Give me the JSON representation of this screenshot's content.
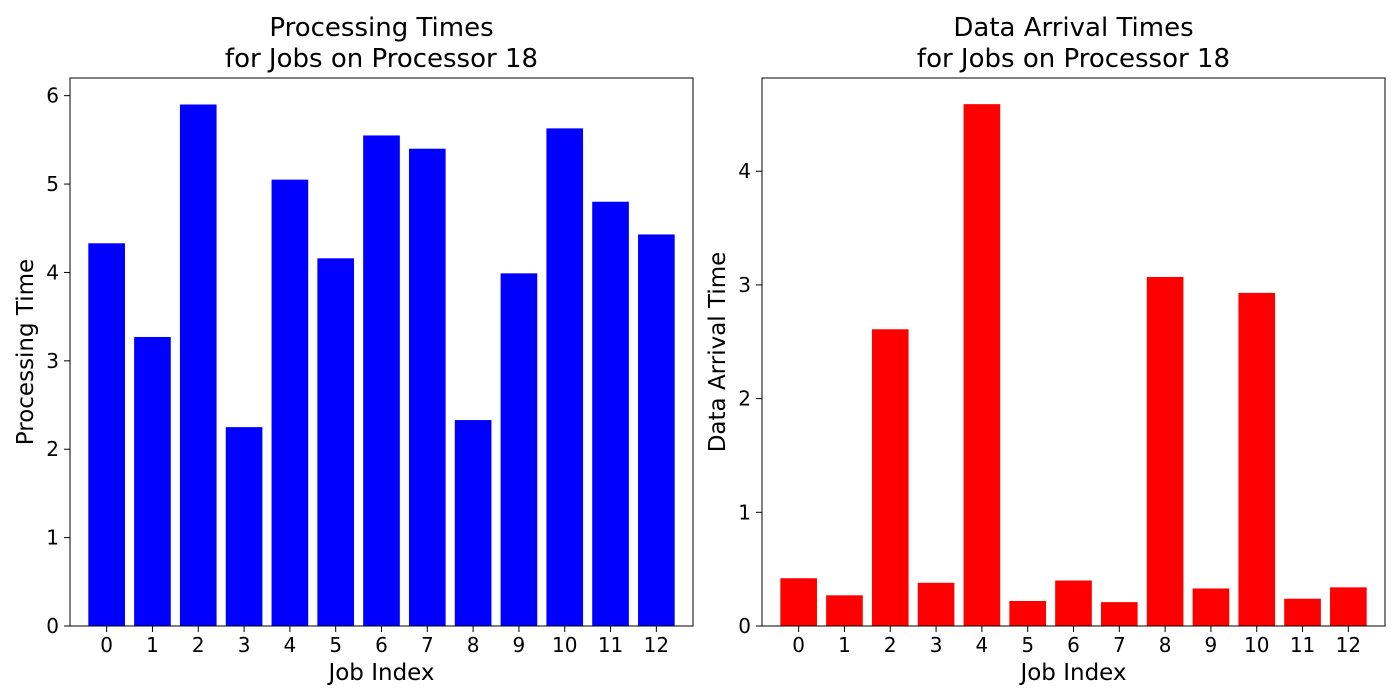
{
  "chart_data": [
    {
      "type": "bar",
      "title_lines": [
        "Processing Times",
        "for Jobs on Processor 18"
      ],
      "xlabel": "Job Index",
      "ylabel": "Processing Time",
      "categories": [
        "0",
        "1",
        "2",
        "3",
        "4",
        "5",
        "6",
        "7",
        "8",
        "9",
        "10",
        "11",
        "12"
      ],
      "values": [
        4.33,
        3.27,
        5.9,
        2.25,
        5.05,
        4.16,
        5.55,
        5.4,
        2.33,
        3.99,
        5.63,
        4.8,
        4.43
      ],
      "ylim": [
        0,
        6.2
      ],
      "yticks": [
        0,
        1,
        2,
        3,
        4,
        5,
        6
      ],
      "color": "#0000ff",
      "grid": false
    },
    {
      "type": "bar",
      "title_lines": [
        "Data Arrival Times",
        "for Jobs on Processor 18"
      ],
      "xlabel": "Job Index",
      "ylabel": "Data Arrival Time",
      "categories": [
        "0",
        "1",
        "2",
        "3",
        "4",
        "5",
        "6",
        "7",
        "8",
        "9",
        "10",
        "11",
        "12"
      ],
      "values": [
        0.42,
        0.27,
        2.61,
        0.38,
        4.59,
        0.22,
        0.4,
        0.21,
        3.07,
        0.33,
        2.93,
        0.24,
        0.34
      ],
      "ylim": [
        0,
        4.82
      ],
      "yticks": [
        0,
        1,
        2,
        3,
        4
      ],
      "color": "#ff0000",
      "grid": false
    }
  ]
}
